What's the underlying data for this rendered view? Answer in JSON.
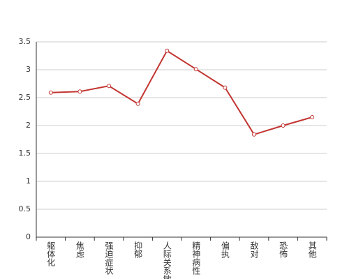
{
  "chart_data": {
    "type": "line",
    "categories": [
      "躯体化",
      "焦虑",
      "强迫症状",
      "抑郁",
      "人际关系敏感",
      "精神病性",
      "偏执",
      "敌对",
      "恐怖",
      "其他"
    ],
    "values": [
      2.59,
      2.61,
      2.71,
      2.39,
      3.34,
      3.01,
      2.68,
      1.84,
      2.0,
      2.15
    ],
    "color": "#c23531",
    "ylim": [
      0,
      3.5
    ],
    "yticks": [
      0,
      0.5,
      1,
      1.5,
      2,
      2.5,
      3,
      3.5
    ],
    "grid": true
  }
}
